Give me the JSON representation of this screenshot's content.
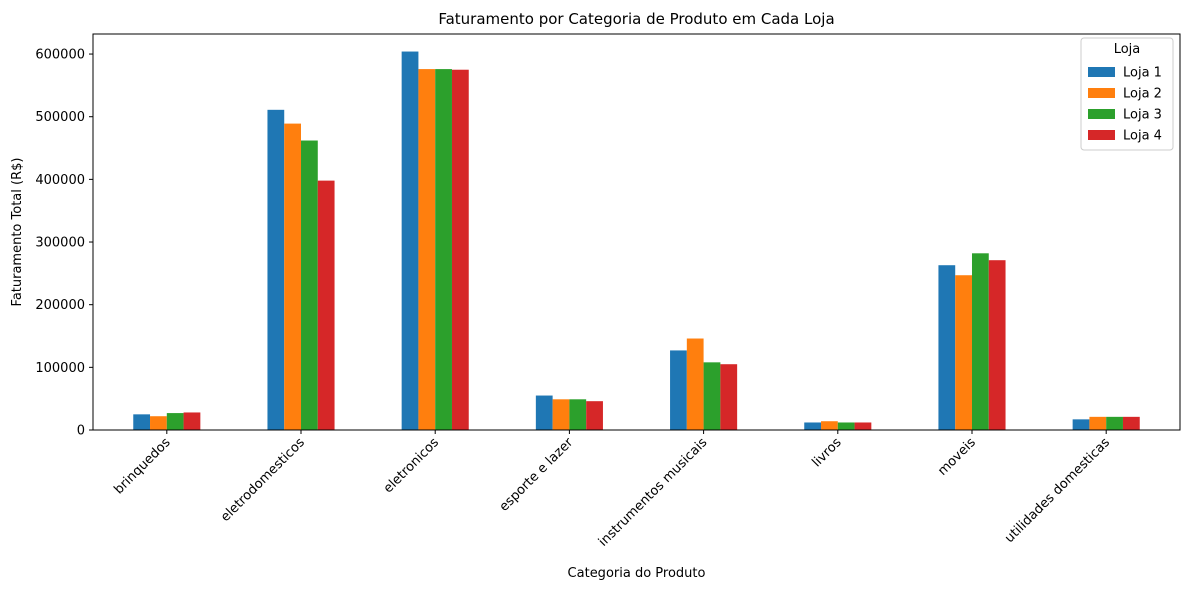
{
  "chart_data": {
    "type": "bar",
    "title": "Faturamento por Categoria de Produto em Cada Loja",
    "xlabel": "Categoria do Produto",
    "ylabel": "Faturamento Total (R$)",
    "ylim": [
      0,
      632000
    ],
    "yticks": [
      0,
      100000,
      200000,
      300000,
      400000,
      500000,
      600000
    ],
    "ytick_labels": [
      "0",
      "100000",
      "200000",
      "300000",
      "400000",
      "500000",
      "600000"
    ],
    "categories": [
      "brinquedos",
      "eletrodomesticos",
      "eletronicos",
      "esporte e lazer",
      "instrumentos musicais",
      "livros",
      "moveis",
      "utilidades domesticas"
    ],
    "series": [
      {
        "name": "Loja 1",
        "color": "#1f77b4",
        "values": [
          25000,
          511000,
          604000,
          55000,
          127000,
          12000,
          263000,
          17000
        ]
      },
      {
        "name": "Loja 2",
        "color": "#ff7f0e",
        "values": [
          22000,
          489000,
          576000,
          49000,
          146000,
          14000,
          247000,
          21000
        ]
      },
      {
        "name": "Loja 3",
        "color": "#2ca02c",
        "values": [
          27000,
          462000,
          576000,
          49000,
          108000,
          12000,
          282000,
          21000
        ]
      },
      {
        "name": "Loja 4",
        "color": "#d62728",
        "values": [
          28000,
          398000,
          575000,
          46000,
          105000,
          12000,
          271000,
          21000
        ]
      }
    ],
    "legend": {
      "title": "Loja",
      "position": "top-right"
    },
    "grid": false,
    "xtick_rotation": 45
  }
}
